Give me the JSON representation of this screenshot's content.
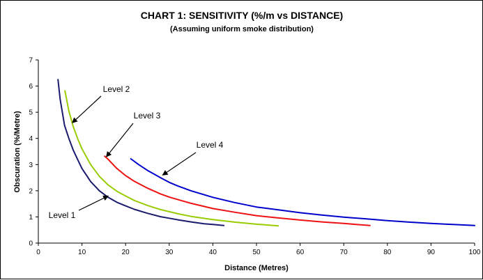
{
  "chart_data": {
    "type": "line",
    "title": "CHART 1:  SENSITIVITY (%/m vs DISTANCE)",
    "subtitle": "(Assuming uniform smoke distribution)",
    "xlabel": "Distance (Metres)",
    "ylabel": "Obscuration (%/Metre)",
    "xlim": [
      0,
      100
    ],
    "ylim": [
      0,
      7
    ],
    "xticks": [
      "0",
      "10",
      "20",
      "30",
      "40",
      "50",
      "60",
      "70",
      "80",
      "90",
      "100"
    ],
    "yticks": [
      "0",
      "1",
      "2",
      "3",
      "4",
      "5",
      "6",
      "7"
    ],
    "grid": false,
    "legend": "none",
    "series": [
      {
        "name": "Level 1",
        "color": "#1a1a6e",
        "x": [
          4.5,
          5,
          6,
          7,
          8,
          9,
          10,
          12,
          14,
          16,
          18,
          20,
          22,
          25,
          28,
          30,
          32,
          35,
          38,
          40,
          42.5
        ],
        "y": [
          6.25,
          5.5,
          4.5,
          4.0,
          3.55,
          3.2,
          2.85,
          2.35,
          2.0,
          1.75,
          1.56,
          1.42,
          1.29,
          1.14,
          1.01,
          0.95,
          0.89,
          0.81,
          0.74,
          0.71,
          0.67
        ]
      },
      {
        "name": "Level 2",
        "color": "#99cc00",
        "x": [
          6.1,
          7,
          8,
          9,
          10,
          12,
          14,
          16,
          18,
          20,
          22,
          25,
          28,
          30,
          32,
          35,
          40,
          45,
          50,
          55
        ],
        "y": [
          5.82,
          5.05,
          4.45,
          4.0,
          3.6,
          3.0,
          2.55,
          2.22,
          1.98,
          1.8,
          1.63,
          1.44,
          1.28,
          1.2,
          1.12,
          1.02,
          0.9,
          0.8,
          0.72,
          0.66
        ]
      },
      {
        "name": "Level 3",
        "color": "#ee1111",
        "x": [
          15.2,
          16,
          18,
          20,
          22,
          25,
          28,
          30,
          32,
          35,
          40,
          45,
          50,
          55,
          60,
          65,
          70,
          76
        ],
        "y": [
          3.32,
          3.2,
          2.85,
          2.58,
          2.36,
          2.1,
          1.88,
          1.76,
          1.66,
          1.52,
          1.32,
          1.18,
          1.05,
          0.96,
          0.88,
          0.81,
          0.75,
          0.67
        ]
      },
      {
        "name": "Level 4",
        "color": "#0000cc",
        "x": [
          21.2,
          23,
          25,
          28,
          30,
          32,
          35,
          40,
          45,
          50,
          55,
          60,
          65,
          70,
          75,
          80,
          85,
          90,
          95,
          100
        ],
        "y": [
          3.22,
          3.0,
          2.78,
          2.5,
          2.32,
          2.18,
          2.0,
          1.75,
          1.55,
          1.38,
          1.27,
          1.16,
          1.07,
          0.99,
          0.93,
          0.86,
          0.8,
          0.75,
          0.71,
          0.67
        ]
      }
    ],
    "annotations": [
      {
        "text": "Level 1",
        "series": "Level 1",
        "arrow_x": 16,
        "arrow_y": 1.8
      },
      {
        "text": "Level 2",
        "series": "Level 2",
        "arrow_x": 7.8,
        "arrow_y": 4.6
      },
      {
        "text": "Level 3",
        "series": "Level 3",
        "arrow_x": 15.6,
        "arrow_y": 3.3
      },
      {
        "text": "Level 4",
        "series": "Level 4",
        "arrow_x": 28.5,
        "arrow_y": 2.6
      }
    ]
  }
}
